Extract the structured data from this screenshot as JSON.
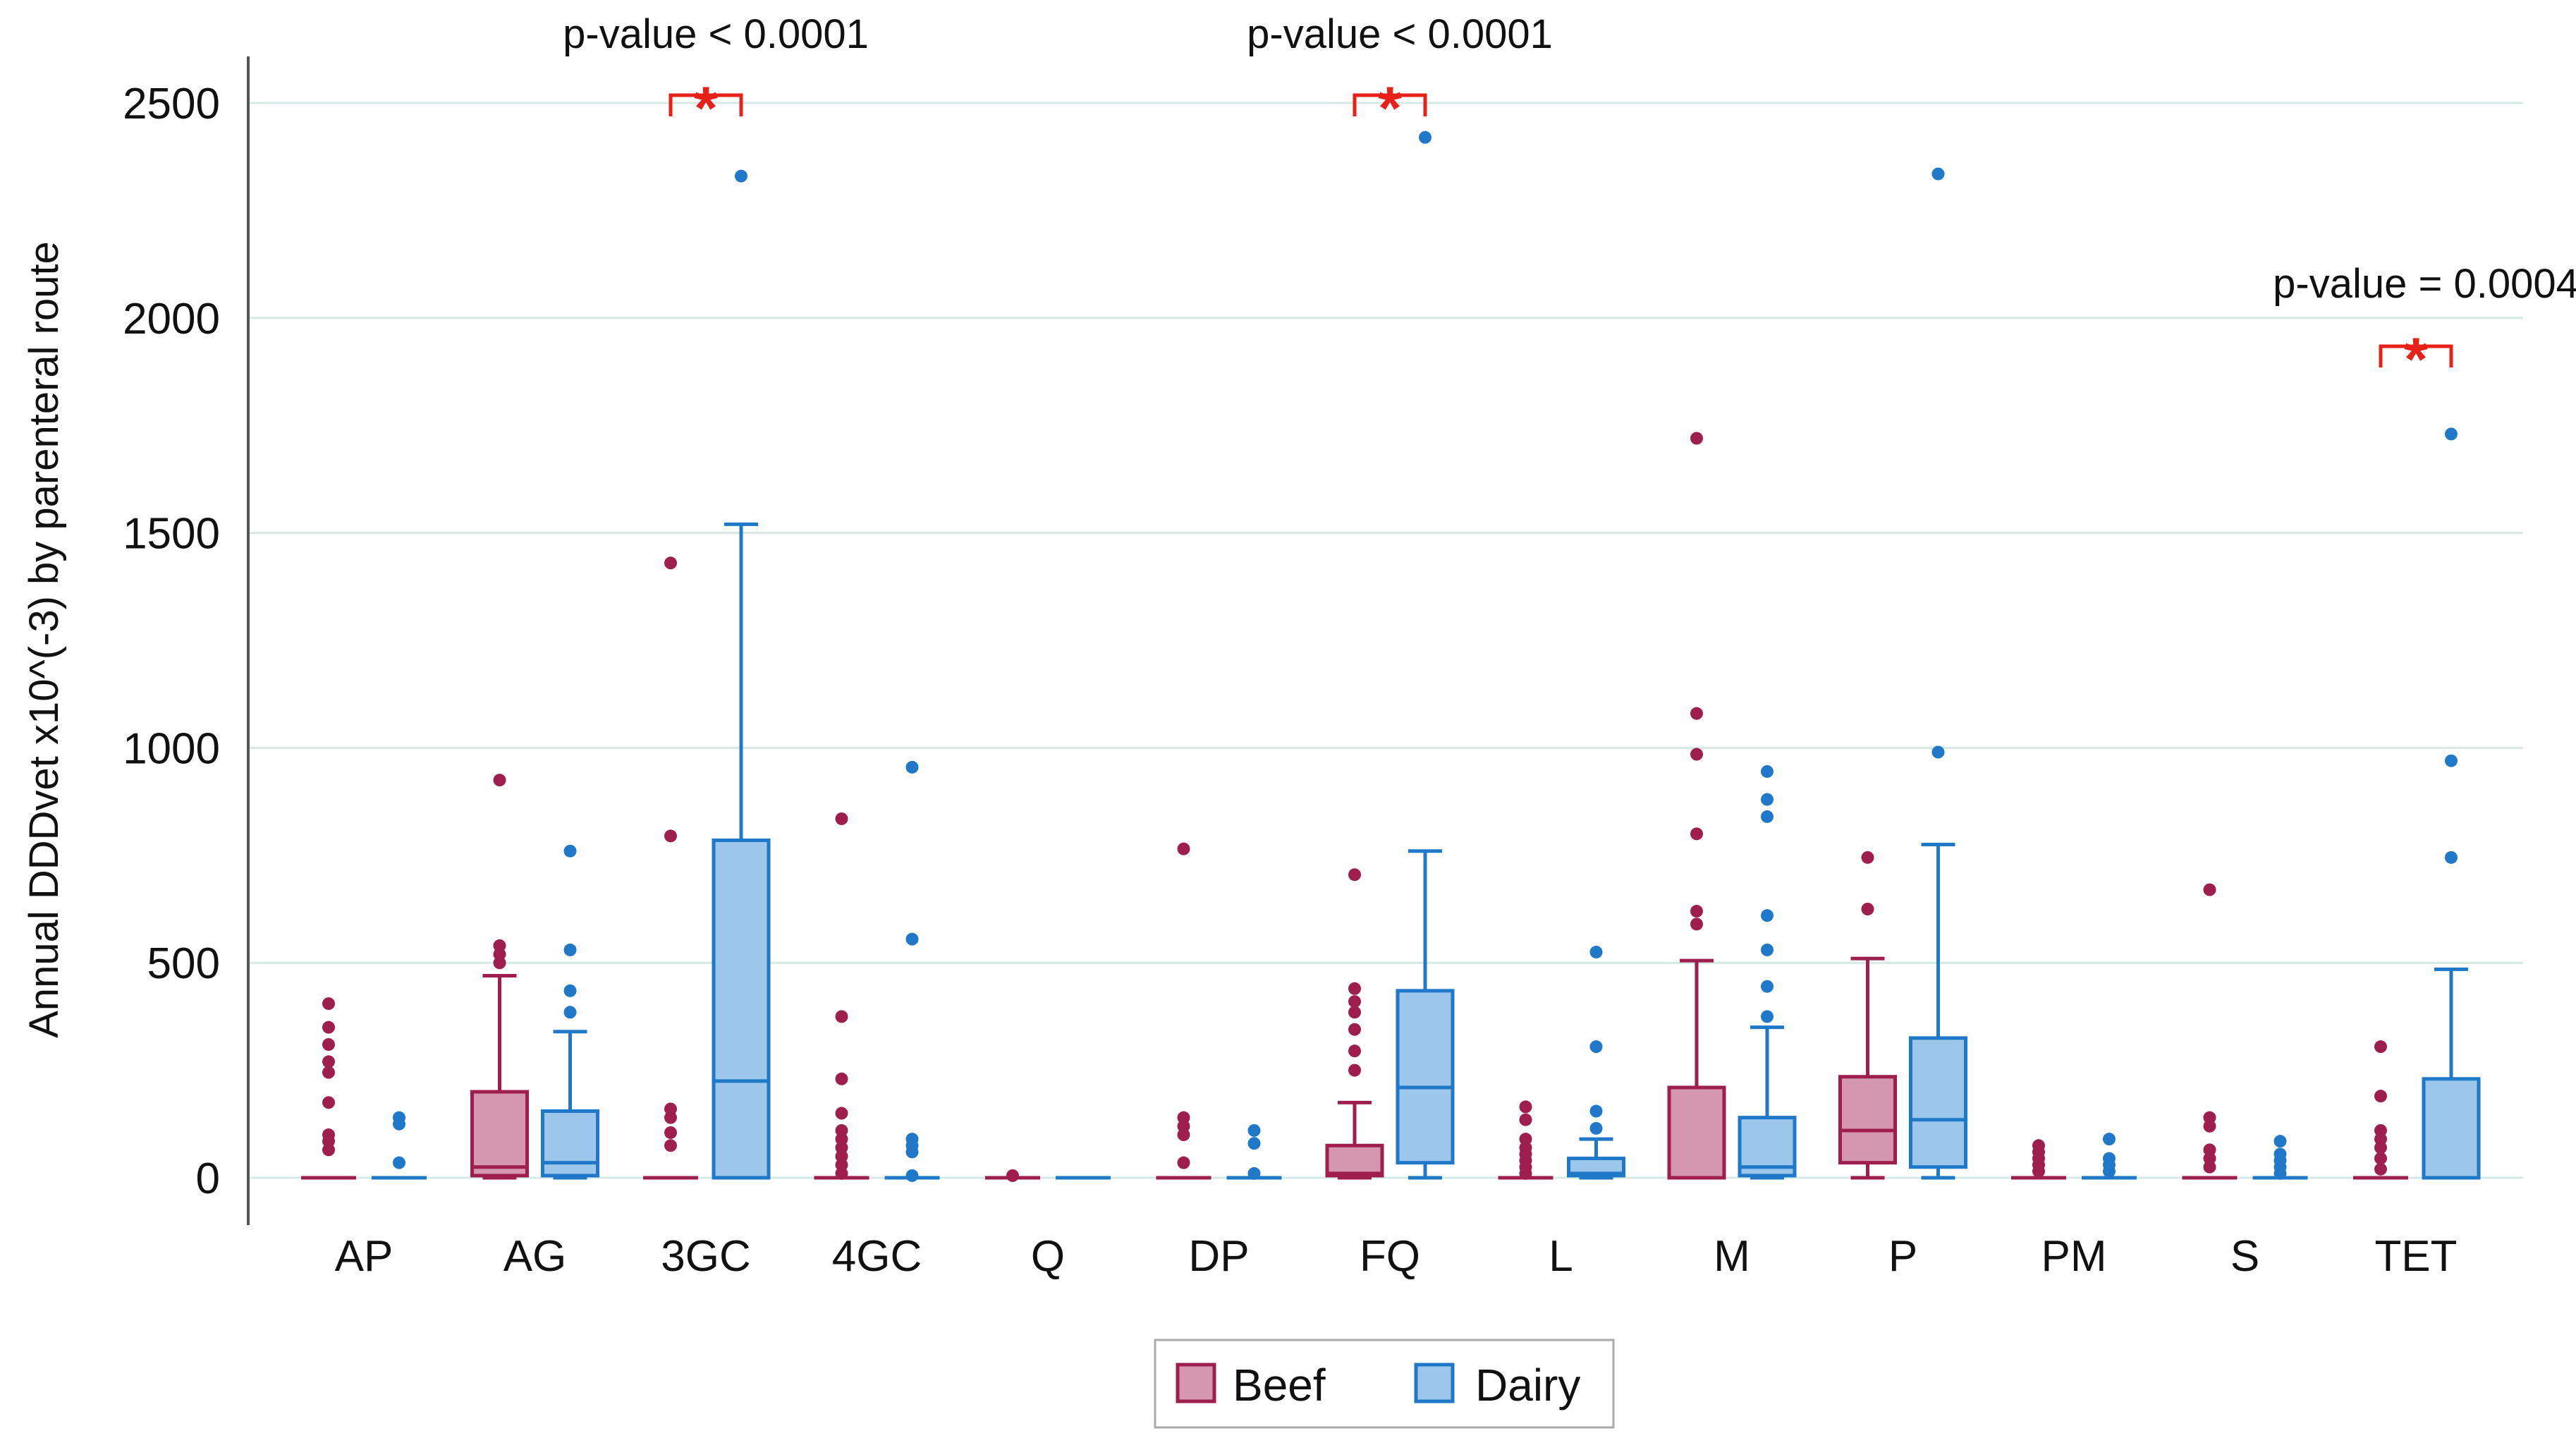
{
  "chart_data": {
    "type": "box",
    "ylabel": "Annual DDDvet  x10^(-3) by parenteral route",
    "xlabel": "",
    "ylim": [
      0,
      2650
    ],
    "yticks": [
      0,
      500,
      1000,
      1500,
      2000,
      2500
    ],
    "grid": "horizontal",
    "legend_position": "bottom-center",
    "categories": [
      "AP",
      "AG",
      "3GC",
      "4GC",
      "Q",
      "DP",
      "FQ",
      "L",
      "M",
      "P",
      "PM",
      "S",
      "TET"
    ],
    "series": [
      {
        "name": "Beef",
        "color": "#9E1E4E",
        "fill": "#D597AD",
        "boxes": [
          {
            "q1": 0,
            "median": 0,
            "q3": 0,
            "whisker_low": 0,
            "whisker_high": 0,
            "outliers": [
              65,
              85,
              100,
              175,
              245,
              270,
              310,
              350,
              405
            ]
          },
          {
            "q1": 5,
            "median": 25,
            "q3": 200,
            "whisker_low": 0,
            "whisker_high": 470,
            "outliers": [
              500,
              520,
              540,
              925
            ]
          },
          {
            "q1": 0,
            "median": 0,
            "q3": 0,
            "whisker_low": 0,
            "whisker_high": 0,
            "outliers": [
              75,
              105,
              140,
              160,
              795,
              1430
            ]
          },
          {
            "q1": 0,
            "median": 0,
            "q3": 0,
            "whisker_low": 0,
            "whisker_high": 0,
            "outliers": [
              10,
              30,
              50,
              70,
              90,
              110,
              150,
              230,
              375,
              835
            ]
          },
          {
            "q1": 0,
            "median": 0,
            "q3": 0,
            "whisker_low": 0,
            "whisker_high": 0,
            "outliers": [
              5
            ]
          },
          {
            "q1": 0,
            "median": 0,
            "q3": 0,
            "whisker_low": 0,
            "whisker_high": 0,
            "outliers": [
              35,
              100,
              120,
              140,
              765
            ]
          },
          {
            "q1": 5,
            "median": 10,
            "q3": 75,
            "whisker_low": 0,
            "whisker_high": 175,
            "outliers": [
              250,
              295,
              345,
              385,
              410,
              440,
              705
            ]
          },
          {
            "q1": 0,
            "median": 0,
            "q3": 0,
            "whisker_low": 0,
            "whisker_high": 0,
            "outliers": [
              10,
              25,
              40,
              55,
              70,
              90,
              135,
              165
            ]
          },
          {
            "q1": 0,
            "median": 0,
            "q3": 210,
            "whisker_low": 0,
            "whisker_high": 505,
            "outliers": [
              590,
              620,
              800,
              985,
              1080,
              1720
            ]
          },
          {
            "q1": 35,
            "median": 110,
            "q3": 235,
            "whisker_low": 0,
            "whisker_high": 510,
            "outliers": [
              625,
              745
            ]
          },
          {
            "q1": 0,
            "median": 0,
            "q3": 0,
            "whisker_low": 0,
            "whisker_high": 0,
            "outliers": [
              15,
              30,
              45,
              60,
              75
            ]
          },
          {
            "q1": 0,
            "median": 0,
            "q3": 0,
            "whisker_low": 0,
            "whisker_high": 0,
            "outliers": [
              25,
              45,
              65,
              120,
              140,
              670
            ]
          },
          {
            "q1": 0,
            "median": 0,
            "q3": 0,
            "whisker_low": 0,
            "whisker_high": 0,
            "outliers": [
              20,
              45,
              70,
              90,
              110,
              190,
              305
            ]
          }
        ]
      },
      {
        "name": "Dairy",
        "color": "#1F78C8",
        "fill": "#9CC7EA",
        "boxes": [
          {
            "q1": 0,
            "median": 0,
            "q3": 0,
            "whisker_low": 0,
            "whisker_high": 0,
            "outliers": [
              35,
              125,
              140
            ]
          },
          {
            "q1": 5,
            "median": 35,
            "q3": 155,
            "whisker_low": 0,
            "whisker_high": 340,
            "outliers": [
              385,
              435,
              530,
              760
            ]
          },
          {
            "q1": 0,
            "median": 225,
            "q3": 785,
            "whisker_low": 0,
            "whisker_high": 1520,
            "outliers": [
              2330
            ]
          },
          {
            "q1": 0,
            "median": 0,
            "q3": 0,
            "whisker_low": 0,
            "whisker_high": 0,
            "outliers": [
              5,
              60,
              75,
              90,
              555,
              955
            ]
          },
          {
            "q1": 0,
            "median": 0,
            "q3": 0,
            "whisker_low": 0,
            "whisker_high": 0,
            "outliers": []
          },
          {
            "q1": 0,
            "median": 0,
            "q3": 0,
            "whisker_low": 0,
            "whisker_high": 0,
            "outliers": [
              10,
              80,
              110
            ]
          },
          {
            "q1": 35,
            "median": 210,
            "q3": 435,
            "whisker_low": 0,
            "whisker_high": 760,
            "outliers": [
              2420
            ]
          },
          {
            "q1": 5,
            "median": 10,
            "q3": 45,
            "whisker_low": 0,
            "whisker_high": 90,
            "outliers": [
              115,
              155,
              305,
              525
            ]
          },
          {
            "q1": 5,
            "median": 25,
            "q3": 140,
            "whisker_low": 0,
            "whisker_high": 350,
            "outliers": [
              375,
              445,
              530,
              610,
              840,
              880,
              945
            ]
          },
          {
            "q1": 25,
            "median": 135,
            "q3": 325,
            "whisker_low": 0,
            "whisker_high": 775,
            "outliers": [
              990,
              2335
            ]
          },
          {
            "q1": 0,
            "median": 0,
            "q3": 0,
            "whisker_low": 0,
            "whisker_high": 0,
            "outliers": [
              15,
              30,
              45,
              90
            ]
          },
          {
            "q1": 0,
            "median": 0,
            "q3": 0,
            "whisker_low": 0,
            "whisker_high": 0,
            "outliers": [
              10,
              25,
              40,
              55,
              85
            ]
          },
          {
            "q1": 0,
            "median": 0,
            "q3": 230,
            "whisker_low": 0,
            "whisker_high": 485,
            "outliers": [
              745,
              970,
              1730
            ]
          }
        ]
      }
    ],
    "annotations": [
      {
        "category": "3GC",
        "text": "p-value < 0.0001",
        "marker": "*"
      },
      {
        "category": "FQ",
        "text": "p-value < 0.0001",
        "marker": "*"
      },
      {
        "category": "TET",
        "text": "p-value = 0.0004",
        "marker": "*"
      }
    ],
    "annotation_color": "#E8201A"
  }
}
